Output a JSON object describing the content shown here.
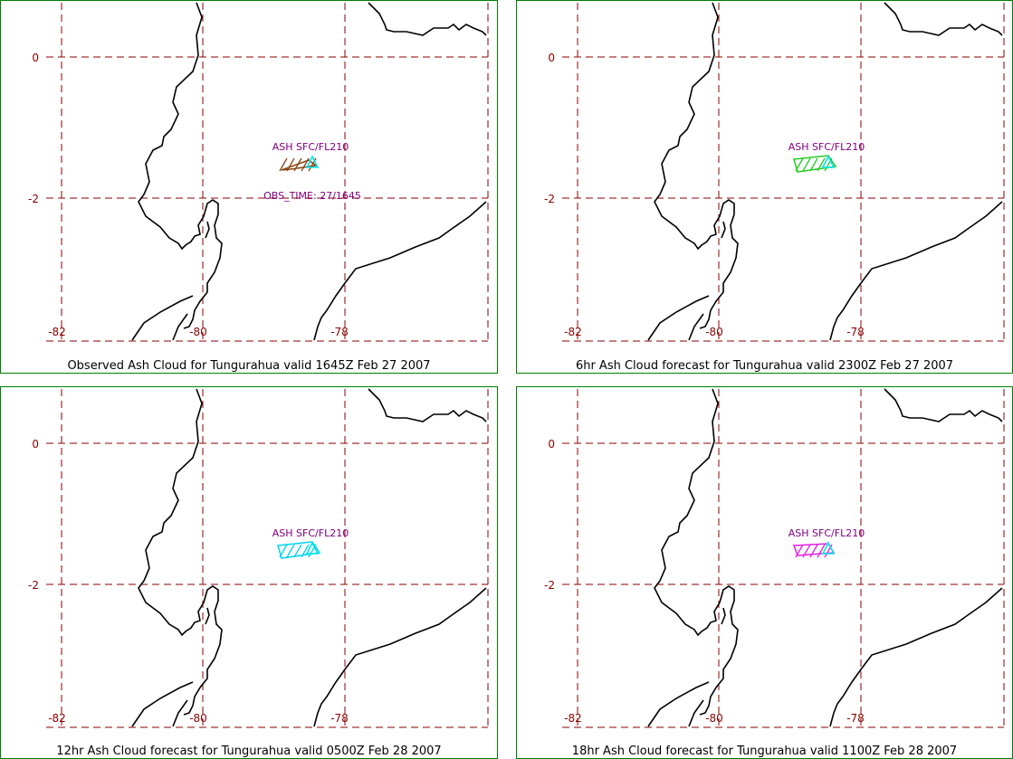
{
  "colors": {
    "border": "#008000",
    "grid": "#8b0000",
    "coast": "#000000",
    "label": "#800080",
    "vent": "#00e5ee"
  },
  "axes": {
    "lat_labels": [
      "0",
      "-2"
    ],
    "lon_labels": [
      "-82",
      "-80",
      "-78"
    ]
  },
  "panels": [
    {
      "caption": "Observed Ash Cloud for Tungurahua valid 1645Z Feb 27 2007",
      "cloud_label": "ASH SFC/FL210",
      "obs_time": "OBS_TIME: 27/1645",
      "cloud_color": "#8b4513"
    },
    {
      "caption": "6hr Ash Cloud forecast for Tungurahua valid 2300Z Feb 27 2007",
      "cloud_label": "ASH SFC/FL210",
      "obs_time": "",
      "cloud_color": "#22cc22"
    },
    {
      "caption": "12hr Ash Cloud forecast for Tungurahua valid 0500Z Feb 28 2007",
      "cloud_label": "ASH SFC/FL210",
      "obs_time": "",
      "cloud_color": "#00d5ee"
    },
    {
      "caption": "18hr Ash Cloud forecast for Tungurahua valid 1100Z Feb 28 2007",
      "cloud_label": "ASH SFC/FL210",
      "obs_time": "",
      "cloud_color": "#e020e0"
    }
  ]
}
